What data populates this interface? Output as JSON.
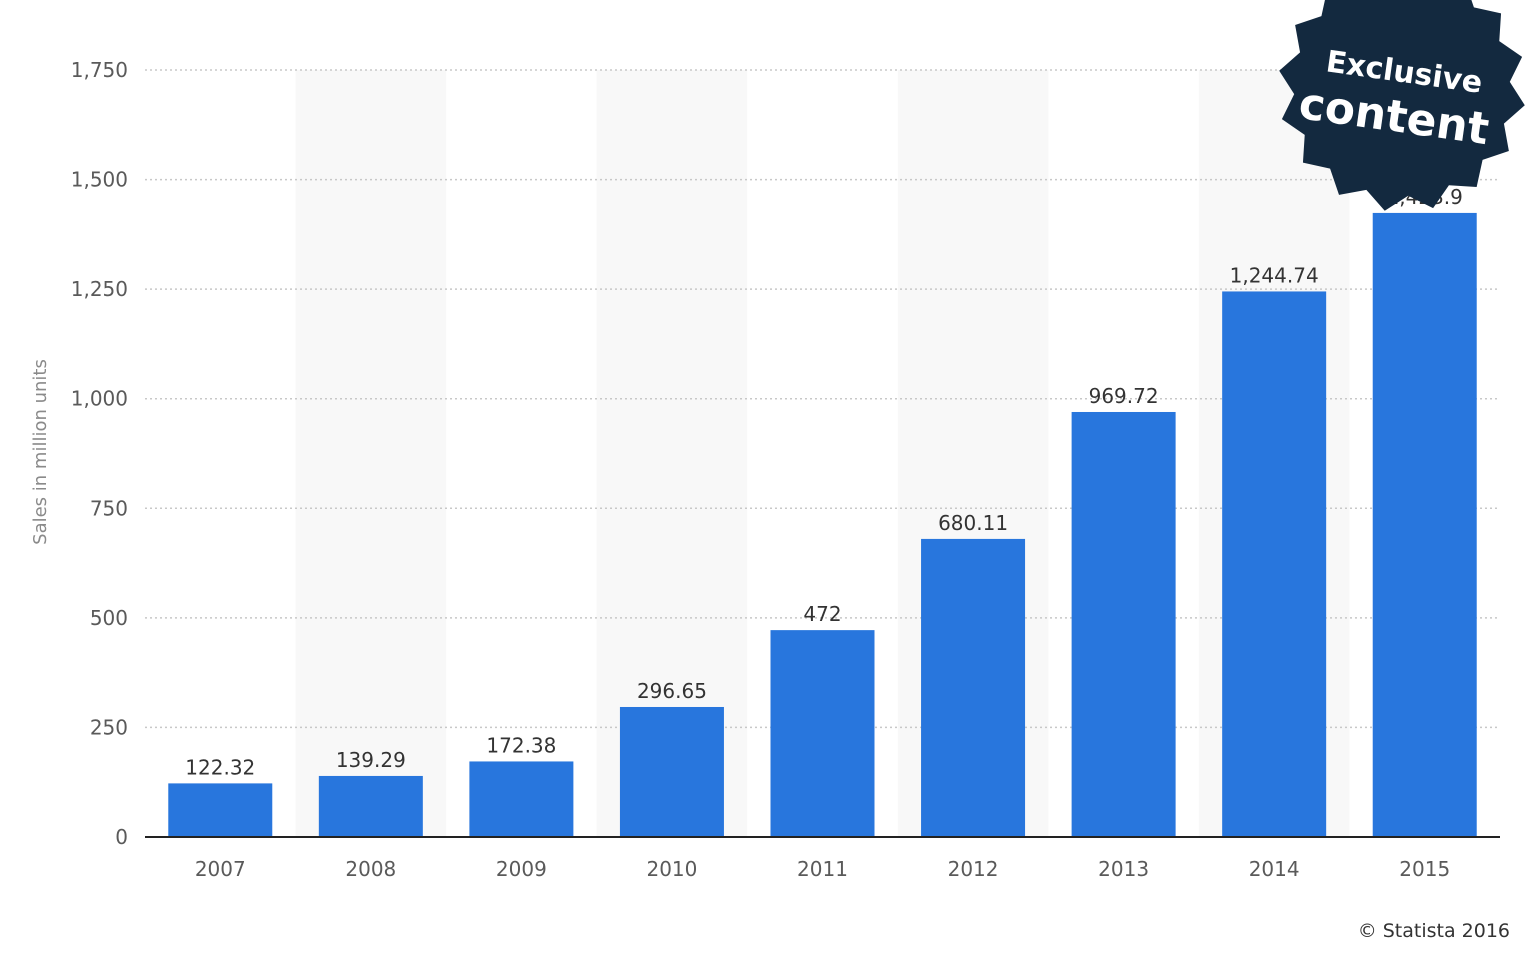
{
  "chart_data": {
    "type": "bar",
    "categories": [
      "2007",
      "2008",
      "2009",
      "2010",
      "2011",
      "2012",
      "2013",
      "2014",
      "2015"
    ],
    "values": [
      122.32,
      139.29,
      172.38,
      296.65,
      472,
      680.11,
      969.72,
      1244.74,
      1423.9
    ],
    "value_labels": [
      "122.32",
      "139.29",
      "172.38",
      "296.65",
      "472",
      "680.11",
      "969.72",
      "1,244.74",
      "1,423.9"
    ],
    "title": "",
    "xlabel": "",
    "ylabel": "Sales in million units",
    "ylim": [
      0,
      1750
    ],
    "yticks": [
      0,
      250,
      500,
      750,
      1000,
      1250,
      1500,
      1750
    ],
    "ytick_labels": [
      "0",
      "250",
      "500",
      "750",
      "1,000",
      "1,250",
      "1,500",
      "1,750"
    ],
    "grid": true,
    "bar_color": "#2876dd",
    "band_color": "#f8f8f8"
  },
  "badge": {
    "line1": "Exclusive",
    "line2": "content",
    "color": "#13293f"
  },
  "credit": "© Statista 2016"
}
